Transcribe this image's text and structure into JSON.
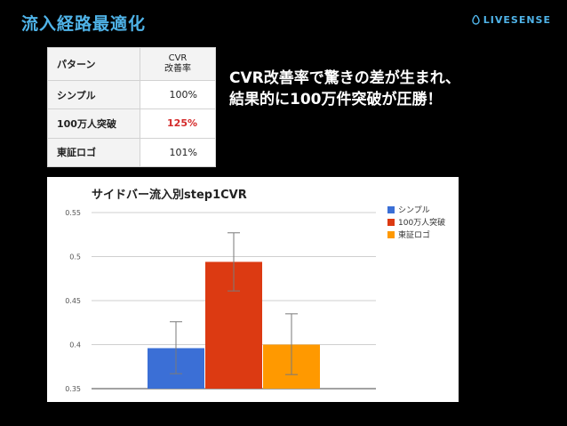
{
  "slide": {
    "title": "流入経路最適化",
    "brand": "LIVESENSE"
  },
  "table": {
    "headers": [
      "パターン",
      "CVR",
      "改善率"
    ],
    "rows": [
      {
        "pattern": "シンプル",
        "rate": "100%"
      },
      {
        "pattern": "100万人突破",
        "rate": "125%"
      },
      {
        "pattern": "東証ロゴ",
        "rate": "101%"
      }
    ],
    "highlight_color": "#d42a2a"
  },
  "headline": {
    "line1": "CVR改善率で驚きの差が生まれ、",
    "line2": "結果的に100万件突破が圧勝！"
  },
  "chart_data": {
    "type": "bar",
    "title": "サイドバー流入別step1CVR",
    "categories": [
      "シンプル",
      "100万人突破",
      "東証ロゴ"
    ],
    "series": [
      {
        "name": "シンプル",
        "value": 0.396,
        "error_low": 0.367,
        "error_high": 0.426,
        "color": "#3b6fd6"
      },
      {
        "name": "100万人突破",
        "value": 0.494,
        "error_low": 0.461,
        "error_high": 0.527,
        "color": "#dc3a12"
      },
      {
        "name": "東証ロゴ",
        "value": 0.4,
        "error_low": 0.366,
        "error_high": 0.435,
        "color": "#ff9900"
      }
    ],
    "yticks": [
      "0.35",
      "0.4",
      "0.45",
      "0.5",
      "0.55"
    ],
    "ylim": [
      0.35,
      0.55
    ],
    "grid": true,
    "legend": "right"
  }
}
